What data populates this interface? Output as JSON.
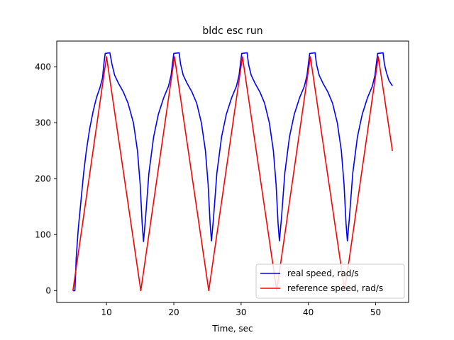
{
  "chart_data": {
    "type": "line",
    "title": "bldc esc run",
    "xlabel": "Time, sec",
    "ylabel": "",
    "xlim": [
      2.6,
      54.9
    ],
    "ylim": [
      -21,
      446
    ],
    "xticks": [
      10,
      20,
      30,
      40,
      50
    ],
    "yticks": [
      0,
      100,
      200,
      300,
      400
    ],
    "grid": false,
    "legend_position": "lower-right",
    "series": [
      {
        "name": "real speed, rad/s",
        "color": "#0000ff",
        "points": [
          [
            5.0,
            0
          ],
          [
            5.3,
            0
          ],
          [
            5.5,
            60
          ],
          [
            5.8,
            110
          ],
          [
            6.2,
            160
          ],
          [
            6.6,
            210
          ],
          [
            7.0,
            250
          ],
          [
            7.5,
            290
          ],
          [
            8.0,
            320
          ],
          [
            8.5,
            345
          ],
          [
            9.0,
            362
          ],
          [
            9.4,
            380
          ],
          [
            9.6,
            405
          ],
          [
            9.8,
            424
          ],
          [
            10.5,
            425
          ],
          [
            10.8,
            405
          ],
          [
            11.2,
            385
          ],
          [
            11.8,
            370
          ],
          [
            12.5,
            355
          ],
          [
            13.2,
            335
          ],
          [
            14.0,
            300
          ],
          [
            14.6,
            250
          ],
          [
            15.0,
            190
          ],
          [
            15.3,
            120
          ],
          [
            15.5,
            88
          ],
          [
            15.8,
            130
          ],
          [
            16.3,
            210
          ],
          [
            17.0,
            275
          ],
          [
            17.7,
            315
          ],
          [
            18.5,
            345
          ],
          [
            19.2,
            365
          ],
          [
            19.6,
            385
          ],
          [
            19.8,
            405
          ],
          [
            20.0,
            424
          ],
          [
            20.8,
            425
          ],
          [
            21.0,
            405
          ],
          [
            21.4,
            385
          ],
          [
            22.0,
            370
          ],
          [
            22.7,
            355
          ],
          [
            23.4,
            335
          ],
          [
            24.1,
            300
          ],
          [
            24.7,
            250
          ],
          [
            25.1,
            190
          ],
          [
            25.4,
            120
          ],
          [
            25.6,
            89
          ],
          [
            25.9,
            130
          ],
          [
            26.4,
            210
          ],
          [
            27.1,
            275
          ],
          [
            27.8,
            315
          ],
          [
            28.6,
            345
          ],
          [
            29.3,
            365
          ],
          [
            29.7,
            385
          ],
          [
            29.9,
            405
          ],
          [
            30.1,
            424
          ],
          [
            30.9,
            425
          ],
          [
            31.1,
            405
          ],
          [
            31.5,
            385
          ],
          [
            32.1,
            370
          ],
          [
            32.8,
            355
          ],
          [
            33.5,
            335
          ],
          [
            34.2,
            300
          ],
          [
            34.8,
            250
          ],
          [
            35.2,
            190
          ],
          [
            35.5,
            120
          ],
          [
            35.7,
            89
          ],
          [
            36.0,
            130
          ],
          [
            36.5,
            210
          ],
          [
            37.2,
            275
          ],
          [
            37.9,
            315
          ],
          [
            38.7,
            345
          ],
          [
            39.4,
            365
          ],
          [
            39.8,
            385
          ],
          [
            40.0,
            405
          ],
          [
            40.2,
            424
          ],
          [
            41.0,
            425
          ],
          [
            41.2,
            405
          ],
          [
            41.6,
            385
          ],
          [
            42.2,
            370
          ],
          [
            42.9,
            355
          ],
          [
            43.6,
            335
          ],
          [
            44.3,
            300
          ],
          [
            44.9,
            250
          ],
          [
            45.3,
            190
          ],
          [
            45.6,
            120
          ],
          [
            45.8,
            89
          ],
          [
            46.1,
            130
          ],
          [
            46.6,
            210
          ],
          [
            47.3,
            275
          ],
          [
            48.0,
            315
          ],
          [
            48.8,
            345
          ],
          [
            49.5,
            365
          ],
          [
            49.9,
            385
          ],
          [
            50.1,
            405
          ],
          [
            50.3,
            424
          ],
          [
            51.1,
            425
          ],
          [
            51.3,
            405
          ],
          [
            51.6,
            390
          ],
          [
            52.0,
            375
          ],
          [
            52.5,
            366
          ]
        ]
      },
      {
        "name": "reference speed, rad/s",
        "color": "#ff0000",
        "points": [
          [
            5.0,
            0
          ],
          [
            10.0,
            418
          ],
          [
            15.1,
            0
          ],
          [
            20.1,
            418
          ],
          [
            25.2,
            0
          ],
          [
            30.2,
            418
          ],
          [
            35.3,
            0
          ],
          [
            40.3,
            418
          ],
          [
            45.4,
            0
          ],
          [
            50.4,
            418
          ],
          [
            52.5,
            250
          ]
        ]
      }
    ]
  }
}
